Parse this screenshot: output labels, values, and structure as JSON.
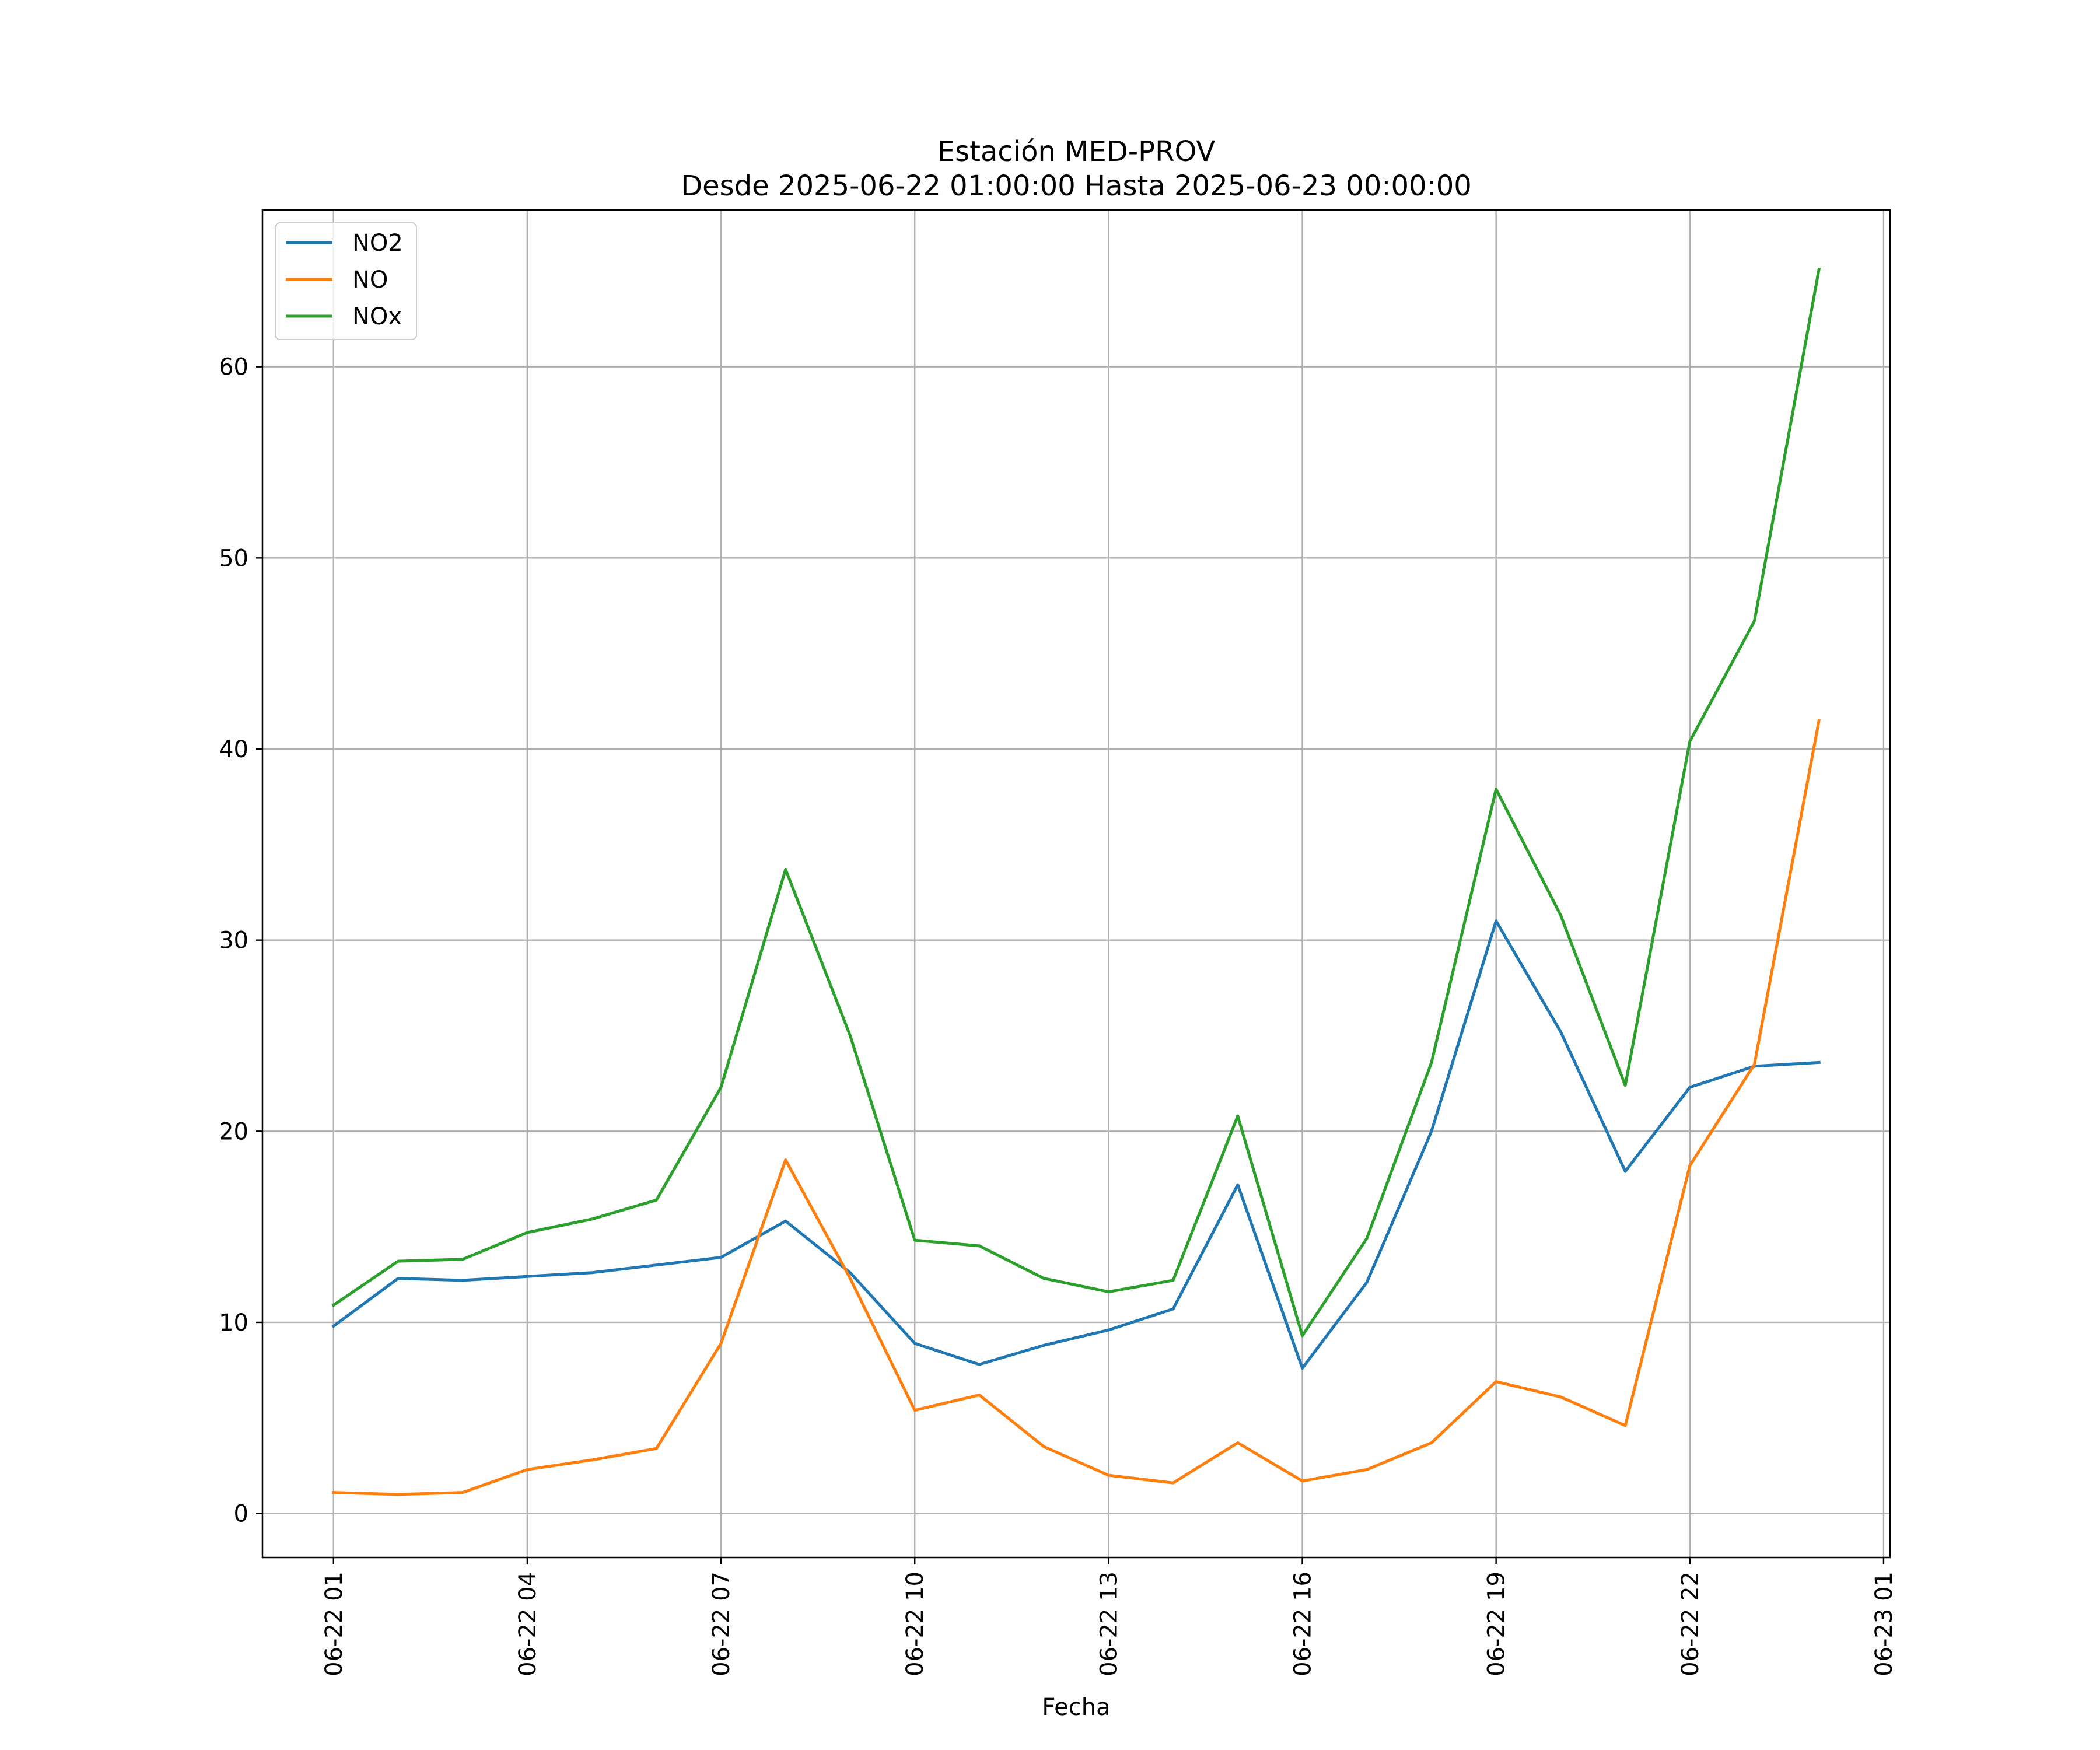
{
  "chart_data": {
    "type": "line",
    "title": "Estación MED-PROV",
    "subtitle": "Desde 2025-06-22 01:00:00 Hasta 2025-06-23 00:00:00",
    "xlabel": "Fecha",
    "ylabel": "",
    "x": [
      1,
      2,
      3,
      4,
      5,
      6,
      7,
      8,
      9,
      10,
      11,
      12,
      13,
      14,
      15,
      16,
      17,
      18,
      19,
      20,
      21,
      22,
      23,
      24
    ],
    "x_tick_values": [
      1,
      4,
      7,
      10,
      13,
      16,
      19,
      22,
      25
    ],
    "x_tick_labels": [
      "06-22 01",
      "06-22 04",
      "06-22 07",
      "06-22 10",
      "06-22 13",
      "06-22 16",
      "06-22 19",
      "06-22 22",
      "06-23 01"
    ],
    "xlim": [
      -0.1,
      25.1
    ],
    "y_ticks": [
      0,
      10,
      20,
      30,
      40,
      50,
      60
    ],
    "y_tick_labels": [
      "0",
      "10",
      "20",
      "30",
      "40",
      "50",
      "60"
    ],
    "ylim": [
      -2.3,
      68.2
    ],
    "grid": true,
    "legend_position": "top-left",
    "series": [
      {
        "name": "NO2",
        "color": "#1f77b4",
        "values": [
          9.8,
          12.3,
          12.2,
          12.4,
          12.6,
          13.0,
          13.4,
          15.3,
          12.6,
          8.9,
          7.8,
          8.8,
          9.6,
          10.7,
          17.2,
          7.6,
          12.1,
          20.0,
          31.0,
          25.2,
          17.9,
          22.3,
          23.4,
          23.6
        ]
      },
      {
        "name": "NO",
        "color": "#ff7f0e",
        "values": [
          1.1,
          1.0,
          1.1,
          2.3,
          2.8,
          3.4,
          8.9,
          18.5,
          12.3,
          5.4,
          6.2,
          3.5,
          2.0,
          1.6,
          3.7,
          1.7,
          2.3,
          3.7,
          6.9,
          6.1,
          4.6,
          18.2,
          23.5,
          41.5
        ]
      },
      {
        "name": "NOx",
        "color": "#2ca02c",
        "values": [
          10.9,
          13.2,
          13.3,
          14.7,
          15.4,
          16.4,
          22.3,
          33.7,
          25.0,
          14.3,
          14.0,
          12.3,
          11.6,
          12.2,
          20.8,
          9.3,
          14.4,
          23.6,
          37.9,
          31.3,
          22.4,
          40.4,
          46.7,
          65.1
        ]
      }
    ]
  }
}
